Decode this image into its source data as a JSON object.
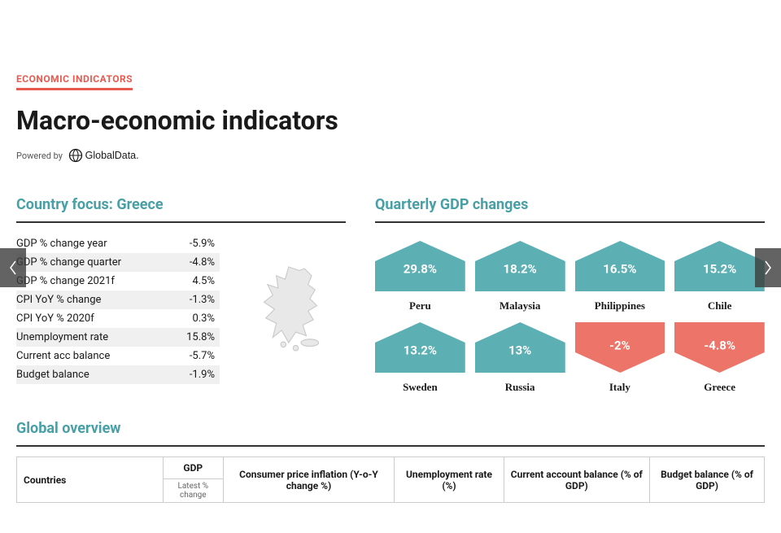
{
  "eyebrow": "ECONOMIC INDICATORS",
  "headline": "Macro-economic indicators",
  "powered_by_label": "Powered by",
  "powered_by_brand": "GlobalData.",
  "colors": {
    "accent": "#e85a4f",
    "teal": "#5cb0b3",
    "teal_dark": "#48a0a6",
    "coral": "#ec7468",
    "rule": "#333333",
    "row_alt": "#f0f0f0",
    "text": "#1a1a1a",
    "bg": "#ffffff"
  },
  "country_focus": {
    "title": "Country focus: Greece",
    "rows": [
      {
        "label": "GDP % change year",
        "value": "-5.9%"
      },
      {
        "label": "GDP % change quarter",
        "value": "-4.8%"
      },
      {
        "label": "GDP % change 2021f",
        "value": "4.5%"
      },
      {
        "label": "CPI YoY % change",
        "value": "-1.3%"
      },
      {
        "label": "CPI YoY % 2020f",
        "value": "0.3%"
      },
      {
        "label": "Unemployment rate",
        "value": "15.8%"
      },
      {
        "label": "Current acc balance",
        "value": "-5.7%"
      },
      {
        "label": "Budget balance",
        "value": "-1.9%"
      }
    ],
    "map_name": "greece-map"
  },
  "gdp_changes": {
    "title": "Quarterly GDP changes",
    "items": [
      {
        "country": "Peru",
        "value": "29.8%",
        "positive": true
      },
      {
        "country": "Malaysia",
        "value": "18.2%",
        "positive": true
      },
      {
        "country": "Philippines",
        "value": "16.5%",
        "positive": true
      },
      {
        "country": "Chile",
        "value": "15.2%",
        "positive": true
      },
      {
        "country": "Sweden",
        "value": "13.2%",
        "positive": true
      },
      {
        "country": "Russia",
        "value": "13%",
        "positive": true
      },
      {
        "country": "Italy",
        "value": "-2%",
        "positive": false
      },
      {
        "country": "Greece",
        "value": "-4.8%",
        "positive": false
      }
    ]
  },
  "global_overview": {
    "title": "Global overview",
    "columns": [
      "Countries",
      "GDP",
      "Consumer price inflation (Y-o-Y change %)",
      "Unemployment rate (%)",
      "Current account balance (% of GDP)",
      "Budget balance (% of GDP)"
    ],
    "gdp_subheader": "Latest % change"
  },
  "nav": {
    "prev": "‹",
    "next": "›"
  }
}
